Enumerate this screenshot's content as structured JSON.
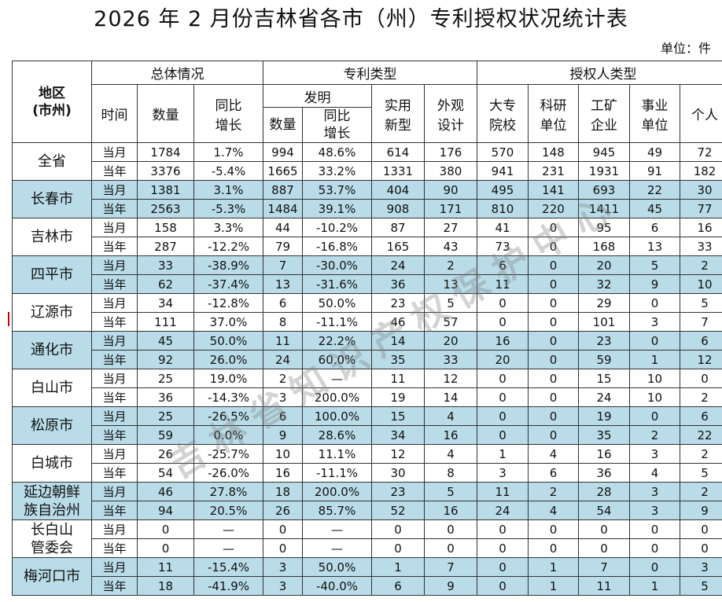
{
  "title": "2026 年 2 月份吉林省各市（州）专利授权状况统计表",
  "unit": "单位：件",
  "watermark": "吉林省知识产权保护中心",
  "headers": {
    "region": "地区\n(市州)",
    "overall": "总体情况",
    "patent_type": "专利类型",
    "grantee_type": "授权人类型",
    "time": "时间",
    "count": "数量",
    "yoy": "同比\n增长",
    "invention": "发明",
    "inv_count": "数量",
    "inv_yoy": "同比\n增长",
    "utility": "实用\n新型",
    "design": "外观\n设计",
    "university": "大专\n院校",
    "research": "科研\n单位",
    "enterprise": "工矿\n企业",
    "institution": "事业\n单位",
    "individual": "个人"
  },
  "regions": [
    {
      "name": "全省",
      "shade": false,
      "rows": [
        [
          "当月",
          "1784",
          "1.7%",
          "994",
          "48.6%",
          "614",
          "176",
          "570",
          "148",
          "945",
          "49",
          "72"
        ],
        [
          "当年",
          "3376",
          "-5.4%",
          "1665",
          "33.2%",
          "1331",
          "380",
          "941",
          "231",
          "1931",
          "91",
          "182"
        ]
      ]
    },
    {
      "name": "长春市",
      "shade": true,
      "rows": [
        [
          "当月",
          "1381",
          "3.1%",
          "887",
          "53.7%",
          "404",
          "90",
          "495",
          "141",
          "693",
          "22",
          "30"
        ],
        [
          "当年",
          "2563",
          "-5.3%",
          "1484",
          "39.1%",
          "908",
          "171",
          "810",
          "220",
          "1411",
          "45",
          "77"
        ]
      ]
    },
    {
      "name": "吉林市",
      "shade": false,
      "rows": [
        [
          "当月",
          "158",
          "3.3%",
          "44",
          "-10.2%",
          "87",
          "27",
          "41",
          "0",
          "95",
          "6",
          "16"
        ],
        [
          "当年",
          "287",
          "-12.2%",
          "79",
          "-16.8%",
          "165",
          "43",
          "73",
          "0",
          "168",
          "13",
          "33"
        ]
      ]
    },
    {
      "name": "四平市",
      "shade": true,
      "rows": [
        [
          "当月",
          "33",
          "-38.9%",
          "7",
          "-30.0%",
          "24",
          "2",
          "6",
          "0",
          "20",
          "5",
          "2"
        ],
        [
          "当年",
          "62",
          "-37.4%",
          "13",
          "-31.6%",
          "36",
          "13",
          "11",
          "0",
          "32",
          "9",
          "10"
        ]
      ]
    },
    {
      "name": "辽源市",
      "shade": false,
      "rows": [
        [
          "当月",
          "34",
          "-12.8%",
          "6",
          "50.0%",
          "23",
          "5",
          "0",
          "0",
          "29",
          "0",
          "5"
        ],
        [
          "当年",
          "111",
          "37.0%",
          "8",
          "-11.1%",
          "46",
          "57",
          "0",
          "0",
          "101",
          "3",
          "7"
        ]
      ]
    },
    {
      "name": "通化市",
      "shade": true,
      "rows": [
        [
          "当月",
          "45",
          "50.0%",
          "11",
          "22.2%",
          "14",
          "20",
          "16",
          "0",
          "23",
          "0",
          "6"
        ],
        [
          "当年",
          "92",
          "26.0%",
          "24",
          "60.0%",
          "35",
          "33",
          "20",
          "0",
          "59",
          "1",
          "12"
        ]
      ]
    },
    {
      "name": "白山市",
      "shade": false,
      "rows": [
        [
          "当月",
          "25",
          "19.0%",
          "2",
          "—",
          "11",
          "12",
          "0",
          "0",
          "15",
          "10",
          "0"
        ],
        [
          "当年",
          "36",
          "-14.3%",
          "3",
          "200.0%",
          "19",
          "14",
          "0",
          "0",
          "24",
          "10",
          "2"
        ]
      ]
    },
    {
      "name": "松原市",
      "shade": true,
      "rows": [
        [
          "当月",
          "25",
          "-26.5%",
          "6",
          "100.0%",
          "15",
          "4",
          "0",
          "0",
          "19",
          "0",
          "6"
        ],
        [
          "当年",
          "59",
          "0.0%",
          "9",
          "28.6%",
          "34",
          "16",
          "0",
          "0",
          "35",
          "2",
          "22"
        ]
      ]
    },
    {
      "name": "白城市",
      "shade": false,
      "rows": [
        [
          "当月",
          "26",
          "-25.7%",
          "10",
          "11.1%",
          "12",
          "4",
          "1",
          "4",
          "16",
          "3",
          "2"
        ],
        [
          "当年",
          "54",
          "-26.0%",
          "16",
          "-11.1%",
          "30",
          "8",
          "3",
          "6",
          "36",
          "4",
          "5"
        ]
      ]
    },
    {
      "name": "延边朝鲜族自治州",
      "shade": true,
      "rows": [
        [
          "当月",
          "46",
          "27.8%",
          "18",
          "200.0%",
          "23",
          "5",
          "11",
          "2",
          "28",
          "3",
          "2"
        ],
        [
          "当年",
          "94",
          "20.5%",
          "26",
          "85.7%",
          "52",
          "16",
          "24",
          "4",
          "54",
          "3",
          "9"
        ]
      ]
    },
    {
      "name": "长白山管委会",
      "shade": false,
      "rows": [
        [
          "当月",
          "0",
          "—",
          "0",
          "—",
          "0",
          "0",
          "0",
          "0",
          "0",
          "0",
          "0"
        ],
        [
          "当年",
          "0",
          "—",
          "0",
          "—",
          "0",
          "0",
          "0",
          "0",
          "0",
          "0",
          "0"
        ]
      ]
    },
    {
      "name": "梅河口市",
      "shade": true,
      "rows": [
        [
          "当月",
          "11",
          "-15.4%",
          "3",
          "50.0%",
          "1",
          "7",
          "0",
          "1",
          "7",
          "0",
          "3"
        ],
        [
          "当年",
          "18",
          "-41.9%",
          "3",
          "-40.0%",
          "6",
          "9",
          "0",
          "1",
          "11",
          "1",
          "5"
        ]
      ]
    }
  ]
}
